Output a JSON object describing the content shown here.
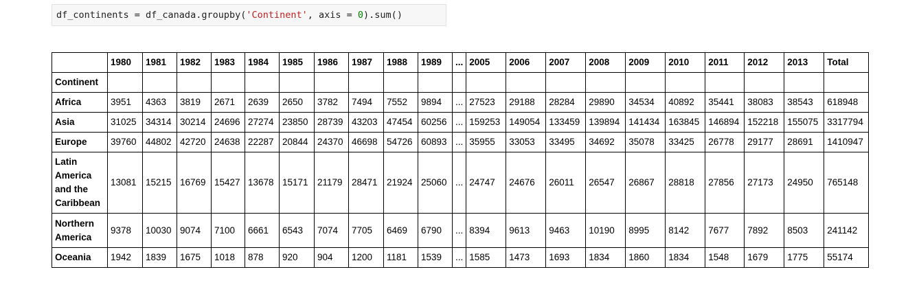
{
  "code": {
    "pre": "df_continents = df_canada.groupby(",
    "arg_str": "'Continent'",
    "mid": ", axis = ",
    "arg_num": "0",
    "post": ").sum()"
  },
  "table": {
    "index_name": "Continent",
    "columns": [
      "1980",
      "1981",
      "1982",
      "1983",
      "1984",
      "1985",
      "1986",
      "1987",
      "1988",
      "1989",
      "...",
      "2005",
      "2006",
      "2007",
      "2008",
      "2009",
      "2010",
      "2011",
      "2012",
      "2013",
      "Total"
    ],
    "rows": [
      {
        "label": "Africa",
        "values": [
          "3951",
          "4363",
          "3819",
          "2671",
          "2639",
          "2650",
          "3782",
          "7494",
          "7552",
          "9894",
          "...",
          "27523",
          "29188",
          "28284",
          "29890",
          "34534",
          "40892",
          "35441",
          "38083",
          "38543",
          "618948"
        ]
      },
      {
        "label": "Asia",
        "values": [
          "31025",
          "34314",
          "30214",
          "24696",
          "27274",
          "23850",
          "28739",
          "43203",
          "47454",
          "60256",
          "...",
          "159253",
          "149054",
          "133459",
          "139894",
          "141434",
          "163845",
          "146894",
          "152218",
          "155075",
          "3317794"
        ]
      },
      {
        "label": "Europe",
        "values": [
          "39760",
          "44802",
          "42720",
          "24638",
          "22287",
          "20844",
          "24370",
          "46698",
          "54726",
          "60893",
          "...",
          "35955",
          "33053",
          "33495",
          "34692",
          "35078",
          "33425",
          "26778",
          "29177",
          "28691",
          "1410947"
        ]
      },
      {
        "label": "Latin America and the Caribbean",
        "values": [
          "13081",
          "15215",
          "16769",
          "15427",
          "13678",
          "15171",
          "21179",
          "28471",
          "21924",
          "25060",
          "...",
          "24747",
          "24676",
          "26011",
          "26547",
          "26867",
          "28818",
          "27856",
          "27173",
          "24950",
          "765148"
        ]
      },
      {
        "label": "Northern America",
        "values": [
          "9378",
          "10030",
          "9074",
          "7100",
          "6661",
          "6543",
          "7074",
          "7705",
          "6469",
          "6790",
          "...",
          "8394",
          "9613",
          "9463",
          "10190",
          "8995",
          "8142",
          "7677",
          "7892",
          "8503",
          "241142"
        ]
      },
      {
        "label": "Oceania",
        "values": [
          "1942",
          "1839",
          "1675",
          "1018",
          "878",
          "920",
          "904",
          "1200",
          "1181",
          "1539",
          "...",
          "1585",
          "1473",
          "1693",
          "1834",
          "1860",
          "1834",
          "1548",
          "1679",
          "1775",
          "55174"
        ]
      }
    ]
  }
}
